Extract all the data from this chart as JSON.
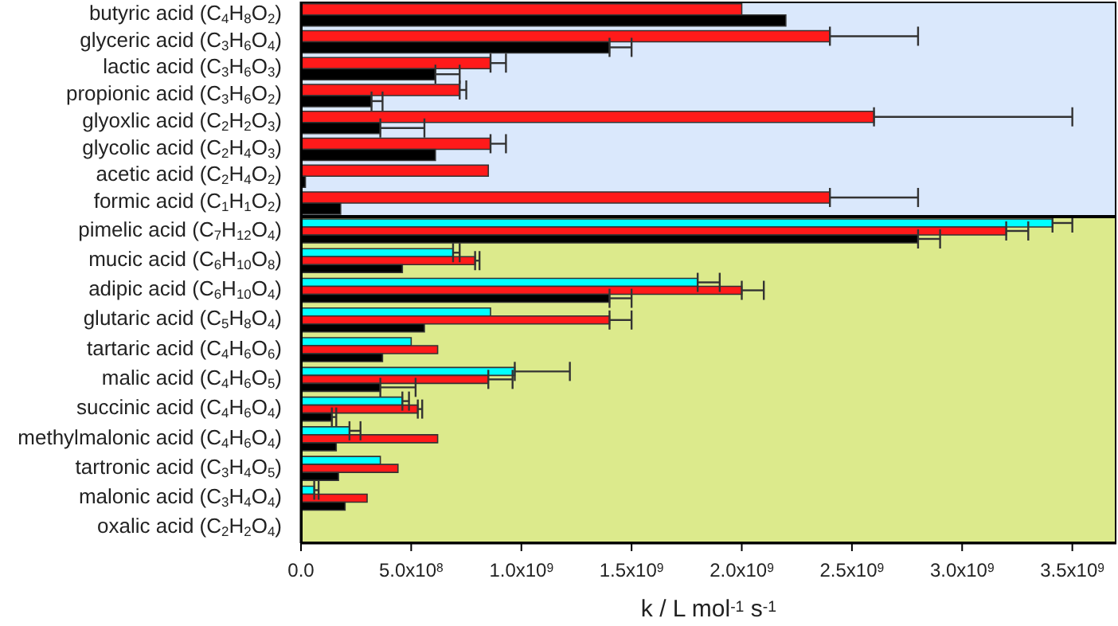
{
  "chart_data": [
    {
      "type": "bar",
      "orientation": "horizontal",
      "tick_labels": "y",
      "categories": [
        "butyric acid (C$_{4}$H$_{8}$O$_{2}$)",
        "glyceric acid (C$_{3}$H$_{6}$O$_{4}$)",
        "lactic acid (C$_{3}$H$_{6}$O$_{3}$)",
        "propionic acid (C$_{3}$H$_{6}$O$_{2}$)",
        "glyoxlic acid (C$_{2}$H$_{2}$O$_{3}$)",
        "glycolic acid (C$_{2}$H$_{4}$O$_{3}$)",
        "acetic acid (C$_{2}$H$_{4}$O$_{2}$)",
        "formic acid (C$_{1}$H$_{1}$O$_{2}$)"
      ],
      "series": [
        {
          "color": "#ff1a1a",
          "values": [
            2000000000.0,
            2400000000.0,
            860000000.0,
            720000000.0,
            2600000000.0,
            860000000.0,
            850000000.0,
            2400000000.0
          ],
          "errors": [
            null,
            [
              2400000000.0,
              2800000000.0
            ],
            [
              860000000.0,
              930000000.0
            ],
            [
              720000000.0,
              750000000.0
            ],
            [
              2600000000.0,
              3500000000.0
            ],
            [
              860000000.0,
              930000000.0
            ],
            null,
            [
              2400000000.0,
              2800000000.0
            ]
          ]
        },
        {
          "color": "#000000",
          "values": [
            2200000000.0,
            1400000000.0,
            610000000.0,
            320000000.0,
            360000000.0,
            610000000.0,
            20000000.0,
            180000000.0
          ],
          "errors": [
            null,
            [
              1400000000.0,
              1500000000.0
            ],
            [
              610000000.0,
              720000000.0
            ],
            [
              320000000.0,
              370000000.0
            ],
            [
              360000000.0,
              560000000.0
            ],
            null,
            null,
            null
          ]
        }
      ],
      "xlim": [
        0,
        3700000000.0
      ],
      "xticks": [
        {
          "value": 0,
          "label": null
        },
        {
          "value": 500000000.0,
          "label": null
        },
        {
          "value": 1000000000.0,
          "label": null
        },
        {
          "value": 1500000000.0,
          "label": null
        },
        {
          "value": 2000000000.0,
          "label": null
        },
        {
          "value": 2500000000.0,
          "label": null
        },
        {
          "value": 3000000000.0,
          "label": null
        },
        {
          "value": 3500000000.0,
          "label": null
        }
      ]
    },
    {
      "type": "bar",
      "orientation": "horizontal",
      "xlabel": "k / L mol$^{-1}$ s$^{-1}$",
      "categories": [
        "pimelic acid (C$_{7}$H$_{12}$O$_{4}$)",
        "mucic acid (C$_{6}$H$_{10}$O$_{8}$)",
        "adipic acid (C$_{6}$H$_{10}$O$_{4}$)",
        "glutaric acid (C$_{5}$H$_{8}$O$_{4}$)",
        "tartaric acid (C$_{4}$H$_{6}$O$_{6}$)",
        "malic acid (C$_{4}$H$_{6}$O$_{5}$)",
        "succinic acid (C$_{4}$H$_{6}$O$_{4}$)",
        "methylmalonic acid (C$_{4}$H$_{6}$O$_{4}$)",
        "tartronic acid (C$_{3}$H$_{4}$O$_{5}$)",
        "malonic acid (C$_{3}$H$_{4}$O$_{4}$)",
        "oxalic acid (C$_{2}$H$_{2}$O$_{4}$)"
      ],
      "series": [
        {
          "color": "#00ffff",
          "values": [
            3410000000.0,
            690000000.0,
            1800000000.0,
            860000000.0,
            500000000.0,
            970000000.0,
            460000000.0,
            220000000.0,
            360000000.0,
            60000000.0,
            0
          ],
          "errors": [
            [
              3410000000.0,
              3500000000.0
            ],
            [
              690000000.0,
              720000000.0
            ],
            [
              1800000000.0,
              1900000000.0
            ],
            null,
            null,
            [
              970000000.0,
              1220000000.0
            ],
            [
              460000000.0,
              490000000.0
            ],
            [
              220000000.0,
              270000000.0
            ],
            null,
            [
              60000000.0,
              80000000.0
            ],
            null
          ]
        },
        {
          "color": "#ff1a1a",
          "values": [
            3200000000.0,
            790000000.0,
            2000000000.0,
            1400000000.0,
            620000000.0,
            850000000.0,
            530000000.0,
            620000000.0,
            440000000.0,
            300000000.0,
            0
          ],
          "errors": [
            [
              3200000000.0,
              3300000000.0
            ],
            [
              790000000.0,
              810000000.0
            ],
            [
              2000000000.0,
              2100000000.0
            ],
            [
              1400000000.0,
              1500000000.0
            ],
            null,
            [
              850000000.0,
              960000000.0
            ],
            [
              530000000.0,
              550000000.0
            ],
            null,
            null,
            null,
            null
          ]
        },
        {
          "color": "#000000",
          "values": [
            2800000000.0,
            460000000.0,
            1400000000.0,
            560000000.0,
            370000000.0,
            360000000.0,
            140000000.0,
            160000000.0,
            170000000.0,
            200000000.0,
            0
          ],
          "errors": [
            [
              2800000000.0,
              2900000000.0
            ],
            null,
            [
              1400000000.0,
              1500000000.0
            ],
            null,
            null,
            [
              360000000.0,
              520000000.0
            ],
            [
              140000000.0,
              160000000.0
            ],
            null,
            null,
            null,
            null
          ]
        }
      ],
      "xlim": [
        0,
        3700000000.0
      ],
      "xticks": [
        {
          "value": 0,
          "label": "0.0"
        },
        {
          "value": 500000000.0,
          "label": "5.0x10$^{8}$"
        },
        {
          "value": 1000000000.0,
          "label": "1.0x10$^{9}$"
        },
        {
          "value": 1500000000.0,
          "label": "1.5x10$^{9}$"
        },
        {
          "value": 2000000000.0,
          "label": "2.0x10$^{9}$"
        },
        {
          "value": 2500000000.0,
          "label": "2.5x10$^{9}$"
        },
        {
          "value": 3000000000.0,
          "label": "3.0x10$^{9}$"
        },
        {
          "value": 3500000000.0,
          "label": "3.5x10$^{9}$"
        }
      ]
    }
  ]
}
